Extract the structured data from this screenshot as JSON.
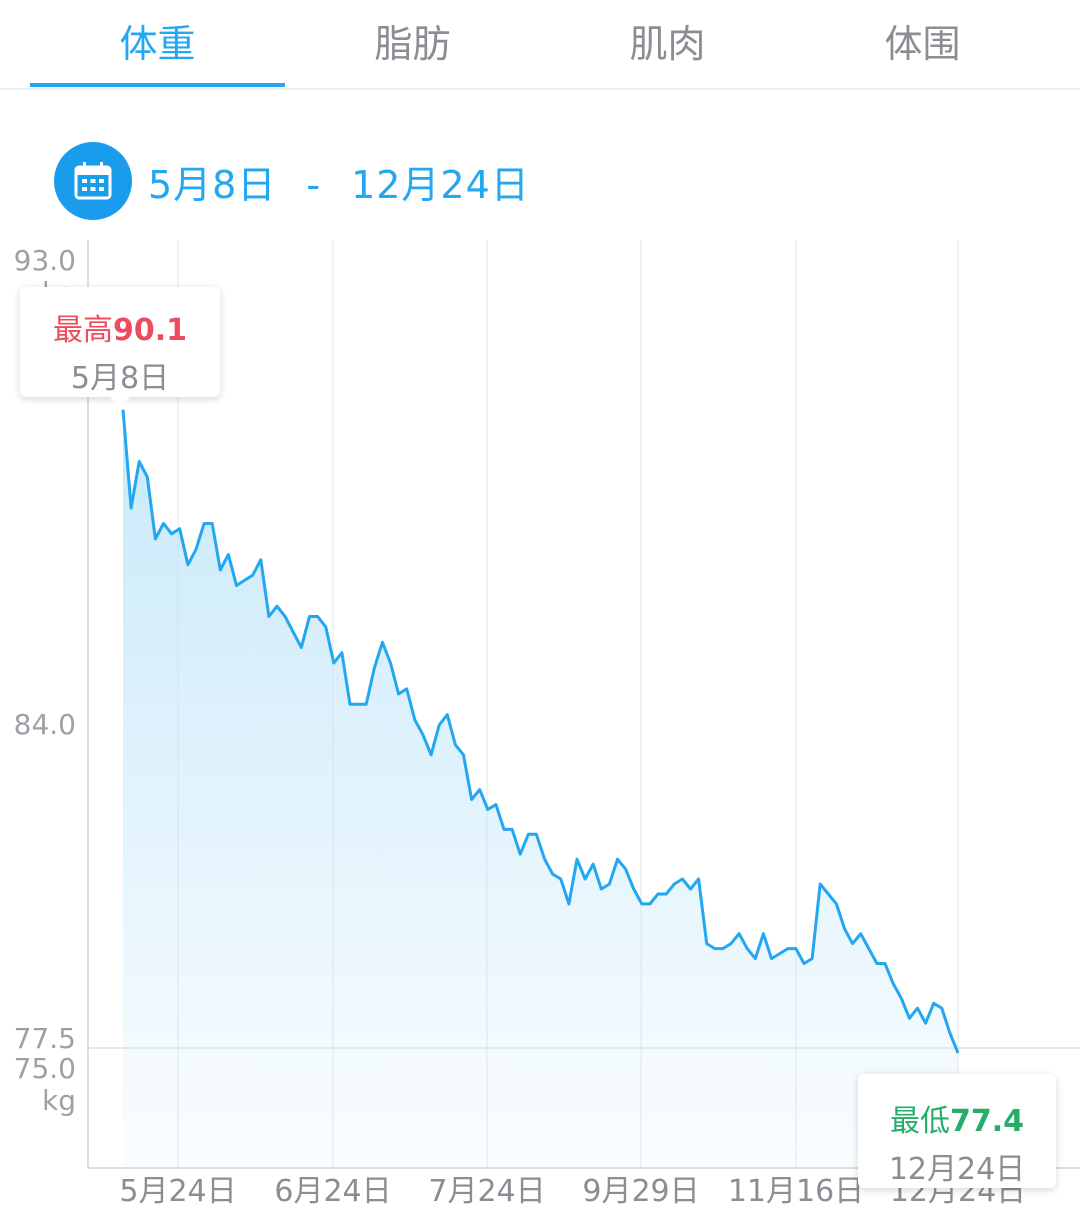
{
  "tabs": [
    {
      "label": "体重",
      "active": true
    },
    {
      "label": "脂肪",
      "active": false
    },
    {
      "label": "肌肉",
      "active": false
    },
    {
      "label": "体围",
      "active": false
    }
  ],
  "date_range": {
    "start": "5月8日",
    "separator": "-",
    "end": "12月24日",
    "icon": "calendar-icon"
  },
  "colors": {
    "accent": "#22a7f0",
    "max": "#ef4b5e",
    "min": "#27ad6a"
  },
  "tooltips": {
    "max": {
      "label": "最高",
      "value": "90.1",
      "date": "5月8日"
    },
    "min": {
      "label": "最低",
      "value": "77.4",
      "date": "12月24日"
    }
  },
  "chart_data": {
    "type": "area",
    "unit": "kg",
    "y_ticks": [
      {
        "value": 93.0,
        "label": "93.0",
        "unit": "kg"
      },
      {
        "value": 84.0,
        "label": "84.0",
        "unit": ""
      },
      {
        "value": 77.5,
        "label": "77.5",
        "unit": ""
      },
      {
        "value": 75.0,
        "label": "75.0",
        "unit": "kg"
      }
    ],
    "x_ticks": [
      "5月24日",
      "6月24日",
      "7月24日",
      "9月29日",
      "11月16日",
      "12月24日"
    ],
    "series": [
      {
        "values": [
          90.1,
          88.2,
          89.1,
          88.8,
          87.6,
          87.9,
          87.7,
          87.8,
          87.1,
          87.4,
          87.9,
          87.9,
          87.0,
          87.3,
          86.7,
          86.8,
          86.9,
          87.2,
          86.1,
          86.3,
          86.1,
          85.8,
          85.5,
          86.1,
          86.1,
          85.9,
          85.2,
          85.4,
          84.4,
          84.4,
          84.4,
          85.1,
          85.6,
          85.2,
          84.6,
          84.7,
          84.1,
          83.8,
          83.4,
          84.0,
          84.2,
          83.6,
          83.4,
          82.5,
          82.7,
          82.3,
          82.4,
          81.9,
          81.9,
          81.4,
          81.8,
          81.8,
          81.3,
          81.0,
          80.9,
          80.4,
          81.3,
          80.9,
          81.2,
          80.7,
          80.8,
          81.3,
          81.1,
          80.7,
          80.4,
          80.4,
          80.6,
          80.6,
          80.8,
          80.9,
          80.7,
          80.9,
          79.6,
          79.5,
          79.5,
          79.6,
          79.8,
          79.5,
          79.3,
          79.8,
          79.3,
          79.4,
          79.5,
          79.5,
          79.2,
          79.3,
          80.8,
          80.6,
          80.4,
          79.9,
          79.6,
          79.8,
          79.5,
          79.2,
          79.2,
          78.8,
          78.5,
          78.1,
          78.3,
          78.0,
          78.4,
          78.3,
          77.8,
          77.4
        ]
      }
    ]
  }
}
